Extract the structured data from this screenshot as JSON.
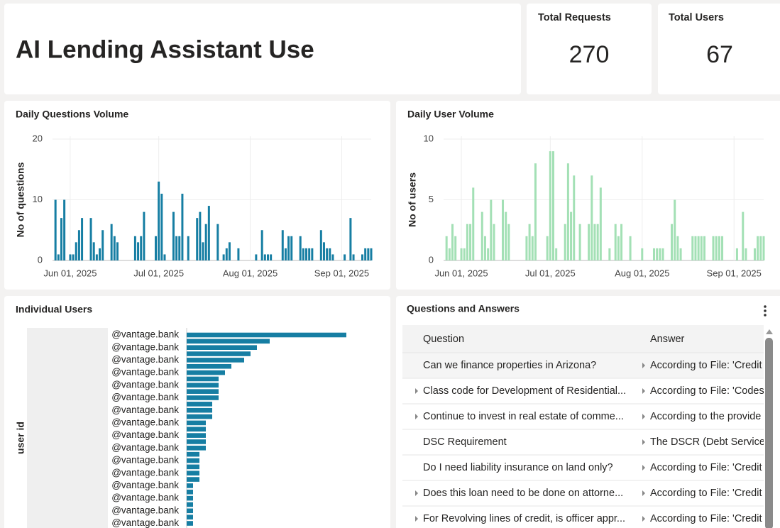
{
  "header": {
    "title": "AI Lending Assistant Use"
  },
  "kpis": [
    {
      "label": "Total Requests",
      "value": 270
    },
    {
      "label": "Total Users",
      "value": 67
    }
  ],
  "chart_data": [
    {
      "type": "bar",
      "title": "Daily Questions Volume",
      "y_label": "No of questions",
      "color": "#167ea3",
      "grid": true,
      "x": [
        "2025-05-27",
        "2025-05-28",
        "2025-05-29",
        "2025-05-30",
        "2025-06-01",
        "2025-06-02",
        "2025-06-03",
        "2025-06-04",
        "2025-06-05",
        "2025-06-08",
        "2025-06-09",
        "2025-06-10",
        "2025-06-11",
        "2025-06-12",
        "2025-06-15",
        "2025-06-16",
        "2025-06-17",
        "2025-06-23",
        "2025-06-24",
        "2025-06-25",
        "2025-06-26",
        "2025-06-30",
        "2025-07-01",
        "2025-07-02",
        "2025-07-03",
        "2025-07-06",
        "2025-07-07",
        "2025-07-08",
        "2025-07-09",
        "2025-07-11",
        "2025-07-14",
        "2025-07-15",
        "2025-07-16",
        "2025-07-17",
        "2025-07-18",
        "2025-07-21",
        "2025-07-23",
        "2025-07-24",
        "2025-07-25",
        "2025-07-28",
        "2025-08-03",
        "2025-08-05",
        "2025-08-06",
        "2025-08-07",
        "2025-08-08",
        "2025-08-12",
        "2025-08-13",
        "2025-08-14",
        "2025-08-15",
        "2025-08-18",
        "2025-08-19",
        "2025-08-20",
        "2025-08-21",
        "2025-08-22",
        "2025-08-25",
        "2025-08-26",
        "2025-08-27",
        "2025-08-28",
        "2025-08-29",
        "2025-09-02",
        "2025-09-04",
        "2025-09-05",
        "2025-09-08",
        "2025-09-09",
        "2025-09-10",
        "2025-09-11"
      ],
      "values": [
        10,
        1,
        7,
        10,
        1,
        1,
        3,
        5,
        7,
        7,
        3,
        1,
        2,
        5,
        6,
        4,
        3,
        4,
        3,
        4,
        8,
        4,
        13,
        11,
        1,
        8,
        4,
        4,
        11,
        4,
        7,
        8,
        3,
        6,
        9,
        6,
        1,
        2,
        3,
        2,
        1,
        5,
        1,
        1,
        1,
        5,
        2,
        4,
        4,
        4,
        2,
        2,
        2,
        2,
        5,
        3,
        2,
        2,
        1,
        1,
        7,
        1,
        1,
        2,
        2,
        2
      ],
      "xlim": [
        "2025-05-26",
        "2025-09-11"
      ],
      "xticks": [
        {
          "value": "2025-06-01",
          "label": "Jun 01, 2025"
        },
        {
          "value": "2025-07-01",
          "label": "Jul 01, 2025"
        },
        {
          "value": "2025-08-01",
          "label": "Aug 01, 2025"
        },
        {
          "value": "2025-09-01",
          "label": "Sep 01, 2025"
        }
      ],
      "ylim": [
        0,
        20
      ],
      "yticks": [
        0,
        10,
        20
      ]
    },
    {
      "type": "bar",
      "title": "Daily User Volume",
      "y_label": "No of users",
      "color": "#a3e0b5",
      "grid": true,
      "x": [
        "2025-05-27",
        "2025-05-28",
        "2025-05-29",
        "2025-05-30",
        "2025-06-01",
        "2025-06-02",
        "2025-06-03",
        "2025-06-04",
        "2025-06-05",
        "2025-06-08",
        "2025-06-09",
        "2025-06-10",
        "2025-06-11",
        "2025-06-12",
        "2025-06-15",
        "2025-06-16",
        "2025-06-17",
        "2025-06-23",
        "2025-06-24",
        "2025-06-25",
        "2025-06-26",
        "2025-06-30",
        "2025-07-01",
        "2025-07-02",
        "2025-07-03",
        "2025-07-06",
        "2025-07-07",
        "2025-07-08",
        "2025-07-09",
        "2025-07-11",
        "2025-07-14",
        "2025-07-15",
        "2025-07-16",
        "2025-07-17",
        "2025-07-18",
        "2025-07-21",
        "2025-07-23",
        "2025-07-24",
        "2025-07-25",
        "2025-07-28",
        "2025-08-01",
        "2025-08-05",
        "2025-08-06",
        "2025-08-07",
        "2025-08-08",
        "2025-08-11",
        "2025-08-12",
        "2025-08-13",
        "2025-08-14",
        "2025-08-18",
        "2025-08-19",
        "2025-08-20",
        "2025-08-21",
        "2025-08-22",
        "2025-08-25",
        "2025-08-26",
        "2025-08-27",
        "2025-08-28",
        "2025-09-02",
        "2025-09-04",
        "2025-09-05",
        "2025-09-08",
        "2025-09-09",
        "2025-09-10",
        "2025-09-11"
      ],
      "values": [
        2,
        1,
        3,
        2,
        1,
        1,
        3,
        3,
        6,
        4,
        2,
        1,
        5,
        3,
        5,
        4,
        3,
        2,
        3,
        2,
        8,
        2,
        9,
        9,
        1,
        3,
        8,
        4,
        7,
        3,
        3,
        7,
        3,
        3,
        6,
        1,
        3,
        2,
        3,
        2,
        1,
        1,
        1,
        1,
        1,
        3,
        5,
        2,
        1,
        2,
        2,
        2,
        2,
        2,
        2,
        2,
        2,
        2,
        1,
        4,
        1,
        1,
        2,
        2,
        2
      ],
      "xlim": [
        "2025-05-26",
        "2025-09-11"
      ],
      "xticks": [
        {
          "value": "2025-06-01",
          "label": "Jun 01, 2025"
        },
        {
          "value": "2025-07-01",
          "label": "Jul 01, 2025"
        },
        {
          "value": "2025-08-01",
          "label": "Aug 01, 2025"
        },
        {
          "value": "2025-09-01",
          "label": "Sep 01, 2025"
        }
      ],
      "ylim": [
        0,
        10
      ],
      "yticks": [
        0,
        5,
        10
      ]
    },
    {
      "type": "barh",
      "title": "Individual Users",
      "y_label": "user id",
      "color": "#167ea3",
      "categories": [
        "@vantage.bank",
        null,
        "@vantage.bank",
        null,
        "@vantage.bank",
        null,
        "@vantage.bank",
        null,
        "@vantage.bank",
        null,
        "@vantage.bank",
        null,
        "@vantage.bank",
        null,
        "@vantage.bank",
        null,
        "@vantage.bank",
        null,
        "@vantage.bank",
        null,
        "@vantage.bank",
        null,
        "@vantage.bank",
        null,
        "@vantage.bank",
        null,
        "@vantage.bank",
        null,
        "@vantage.bank",
        null,
        "@vantage.bank"
      ],
      "values": [
        25,
        13,
        11,
        10,
        9,
        7,
        6,
        5,
        5,
        5,
        5,
        4,
        4,
        4,
        3,
        3,
        3,
        3,
        3,
        2,
        2,
        2,
        2,
        2,
        1,
        1,
        1,
        1,
        1,
        1,
        1
      ],
      "xlim": [
        0,
        30
      ]
    }
  ],
  "table": {
    "title": "Questions and Answers",
    "columns": [
      "Question",
      "Answer"
    ],
    "rows": [
      {
        "question": "Can we finance properties in Arizona?",
        "answer": "According to File: 'Credit",
        "expandable": false
      },
      {
        "question": "Class code for Development of Residential...",
        "answer": "According to File: 'Codes",
        "expandable": true
      },
      {
        "question": "Continue to invest in real estate of comme...",
        "answer": "According to the provide",
        "expandable": true
      },
      {
        "question": "DSC Requirement",
        "answer": "The DSCR (Debt Service",
        "expandable": false
      },
      {
        "question": "Do I need liability insurance on land only?",
        "answer": "According to File: 'Credit",
        "expandable": false
      },
      {
        "question": "Does this loan need to be done on attorne...",
        "answer": "According to File: 'Credit",
        "expandable": true
      },
      {
        "question": "For Revolving lines of credit, is officer appr...",
        "answer": "According to File: 'Credit",
        "expandable": true
      }
    ]
  }
}
